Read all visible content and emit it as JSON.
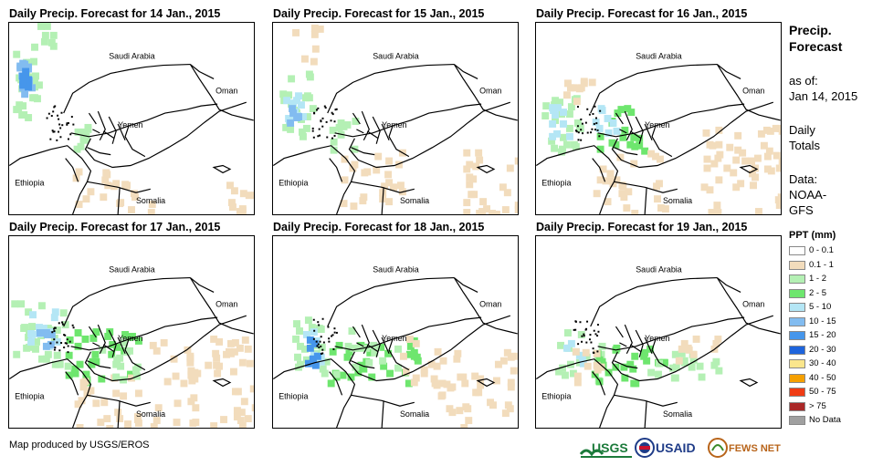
{
  "panels": [
    {
      "title": "Daily Precip. Forecast for 14 Jan., 2015"
    },
    {
      "title": "Daily Precip. Forecast for 15 Jan., 2015"
    },
    {
      "title": "Daily Precip. Forecast for 16 Jan., 2015"
    },
    {
      "title": "Daily Precip. Forecast for 17 Jan., 2015"
    },
    {
      "title": "Daily Precip. Forecast for 18 Jan., 2015"
    },
    {
      "title": "Daily Precip. Forecast for 19 Jan., 2015"
    }
  ],
  "map_labels": {
    "saudi": "Saudi Arabia",
    "oman": "Oman",
    "yemen": "Yemen",
    "ethiopia": "Ethiopia",
    "somalia": "Somalia"
  },
  "side": {
    "title_line1": "Precip.",
    "title_line2": "Forecast",
    "asof_line1": "as of:",
    "asof_line2": "Jan 14, 2015",
    "daily_line1": "Daily",
    "daily_line2": "Totals",
    "data_line1": "Data:",
    "data_line2": "NOAA-",
    "data_line3": "GFS"
  },
  "legend": {
    "title": "PPT (mm)",
    "items": [
      {
        "label": "0 - 0.1",
        "color": "#ffffff"
      },
      {
        "label": "0.1 - 1",
        "color": "#f2dcbc"
      },
      {
        "label": "1 - 2",
        "color": "#b4f0b4"
      },
      {
        "label": "2 - 5",
        "color": "#6ee66e"
      },
      {
        "label": "5 - 10",
        "color": "#b4e6f5"
      },
      {
        "label": "10 - 15",
        "color": "#82bcf0"
      },
      {
        "label": "15 - 20",
        "color": "#4696eb"
      },
      {
        "label": "20 - 30",
        "color": "#1e64dc"
      },
      {
        "label": "30 - 40",
        "color": "#fae68c"
      },
      {
        "label": "40 - 50",
        "color": "#f5a000"
      },
      {
        "label": "50 - 75",
        "color": "#f03c14"
      },
      {
        "label": "> 75",
        "color": "#aa2828"
      },
      {
        "label": "No Data",
        "color": "#a0a0a0"
      }
    ]
  },
  "credit": "Map produced by USGS/EROS",
  "logos": {
    "usgs": "USGS",
    "usaid": "USAID",
    "fewsnet": "FEWS NET"
  }
}
